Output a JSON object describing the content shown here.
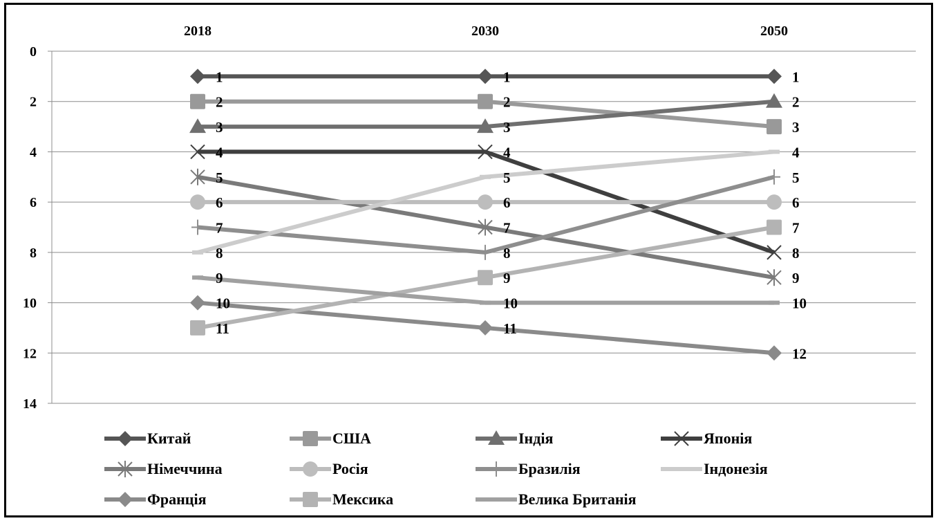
{
  "chart_data": {
    "type": "line",
    "x": [
      "2018",
      "2030",
      "2050"
    ],
    "y_axis": {
      "min": 0,
      "max": 14,
      "step": 2,
      "inverted": true,
      "tick_labels": [
        "0",
        "2",
        "4",
        "6",
        "8",
        "10",
        "12",
        "14"
      ]
    },
    "grid": true,
    "legend_position": "bottom",
    "series": [
      {
        "name": "Китай",
        "values": [
          1,
          1,
          1
        ],
        "labels": [
          "1",
          "1",
          "1"
        ],
        "color": "#555555",
        "marker": "diamond"
      },
      {
        "name": "США",
        "values": [
          2,
          2,
          3
        ],
        "labels": [
          "2",
          "2",
          "3"
        ],
        "color": "#999999",
        "marker": "square"
      },
      {
        "name": "Індія",
        "values": [
          3,
          3,
          2
        ],
        "labels": [
          "3",
          "3",
          "2"
        ],
        "color": "#6f6f6f",
        "marker": "triangle"
      },
      {
        "name": "Японія",
        "values": [
          4,
          4,
          8
        ],
        "labels": [
          "4",
          "4",
          "8"
        ],
        "color": "#3f3f3f",
        "marker": "x"
      },
      {
        "name": "Німеччина",
        "values": [
          5,
          7,
          9
        ],
        "labels": [
          "5",
          "7",
          "9"
        ],
        "color": "#7a7a7a",
        "marker": "star"
      },
      {
        "name": "Росія",
        "values": [
          6,
          6,
          6
        ],
        "labels": [
          "6",
          "6",
          "6"
        ],
        "color": "#bdbdbd",
        "marker": "circle"
      },
      {
        "name": "Бразилія",
        "values": [
          7,
          8,
          5
        ],
        "labels": [
          "7",
          "8",
          "5"
        ],
        "color": "#8e8e8e",
        "marker": "plus"
      },
      {
        "name": "Індонезія",
        "values": [
          8,
          5,
          4
        ],
        "labels": [
          "8",
          "5",
          "4"
        ],
        "color": "#cccccc",
        "marker": "dash"
      },
      {
        "name": "Франція",
        "values": [
          10,
          11,
          12
        ],
        "labels": [
          "10",
          "11",
          "12"
        ],
        "color": "#8a8a8a",
        "marker": "diamond"
      },
      {
        "name": "Мексика",
        "values": [
          11,
          9,
          7
        ],
        "labels": [
          "11",
          "9",
          "7"
        ],
        "color": "#b3b3b3",
        "marker": "square"
      },
      {
        "name": "Велика Британія",
        "values": [
          9,
          10,
          10
        ],
        "labels": [
          "9",
          "10",
          "10"
        ],
        "color": "#a0a0a0",
        "marker": "dash"
      }
    ]
  }
}
